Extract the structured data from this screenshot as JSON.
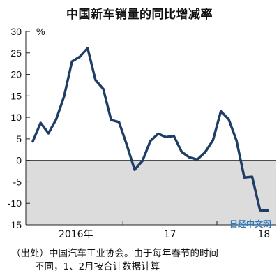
{
  "chart_data": {
    "type": "line",
    "title": "中国新车销量的同比增减率",
    "unit_label": "%",
    "ylim": [
      -15,
      30
    ],
    "yticks": [
      30,
      25,
      20,
      15,
      10,
      5,
      0,
      -5,
      -10,
      -15
    ],
    "negative_region_shaded": true,
    "grid": false,
    "x_tick_labels": [
      {
        "label": "2016年",
        "month_index": 0
      },
      {
        "label": "17",
        "month_index": 12
      },
      {
        "label": "18",
        "month_index": 24
      }
    ],
    "series": [
      {
        "color": "#1f3d66",
        "values": [
          4.4,
          8.7,
          6.3,
          9.6,
          14.9,
          23.0,
          24.1,
          26.1,
          18.7,
          16.6,
          9.4,
          8.9,
          3.6,
          -2.2,
          -0.1,
          4.5,
          6.2,
          5.4,
          5.7,
          2.0,
          0.7,
          0.2,
          1.9,
          4.7,
          11.4,
          9.6,
          4.6,
          -4.0,
          -3.8,
          -11.6,
          -11.7
        ]
      }
    ]
  },
  "watermark": "日经中文网",
  "notes": [
    "（出处）中国汽车工业协会。由于每年春节的时间",
    "不同，1、2月按合计数据计算"
  ]
}
